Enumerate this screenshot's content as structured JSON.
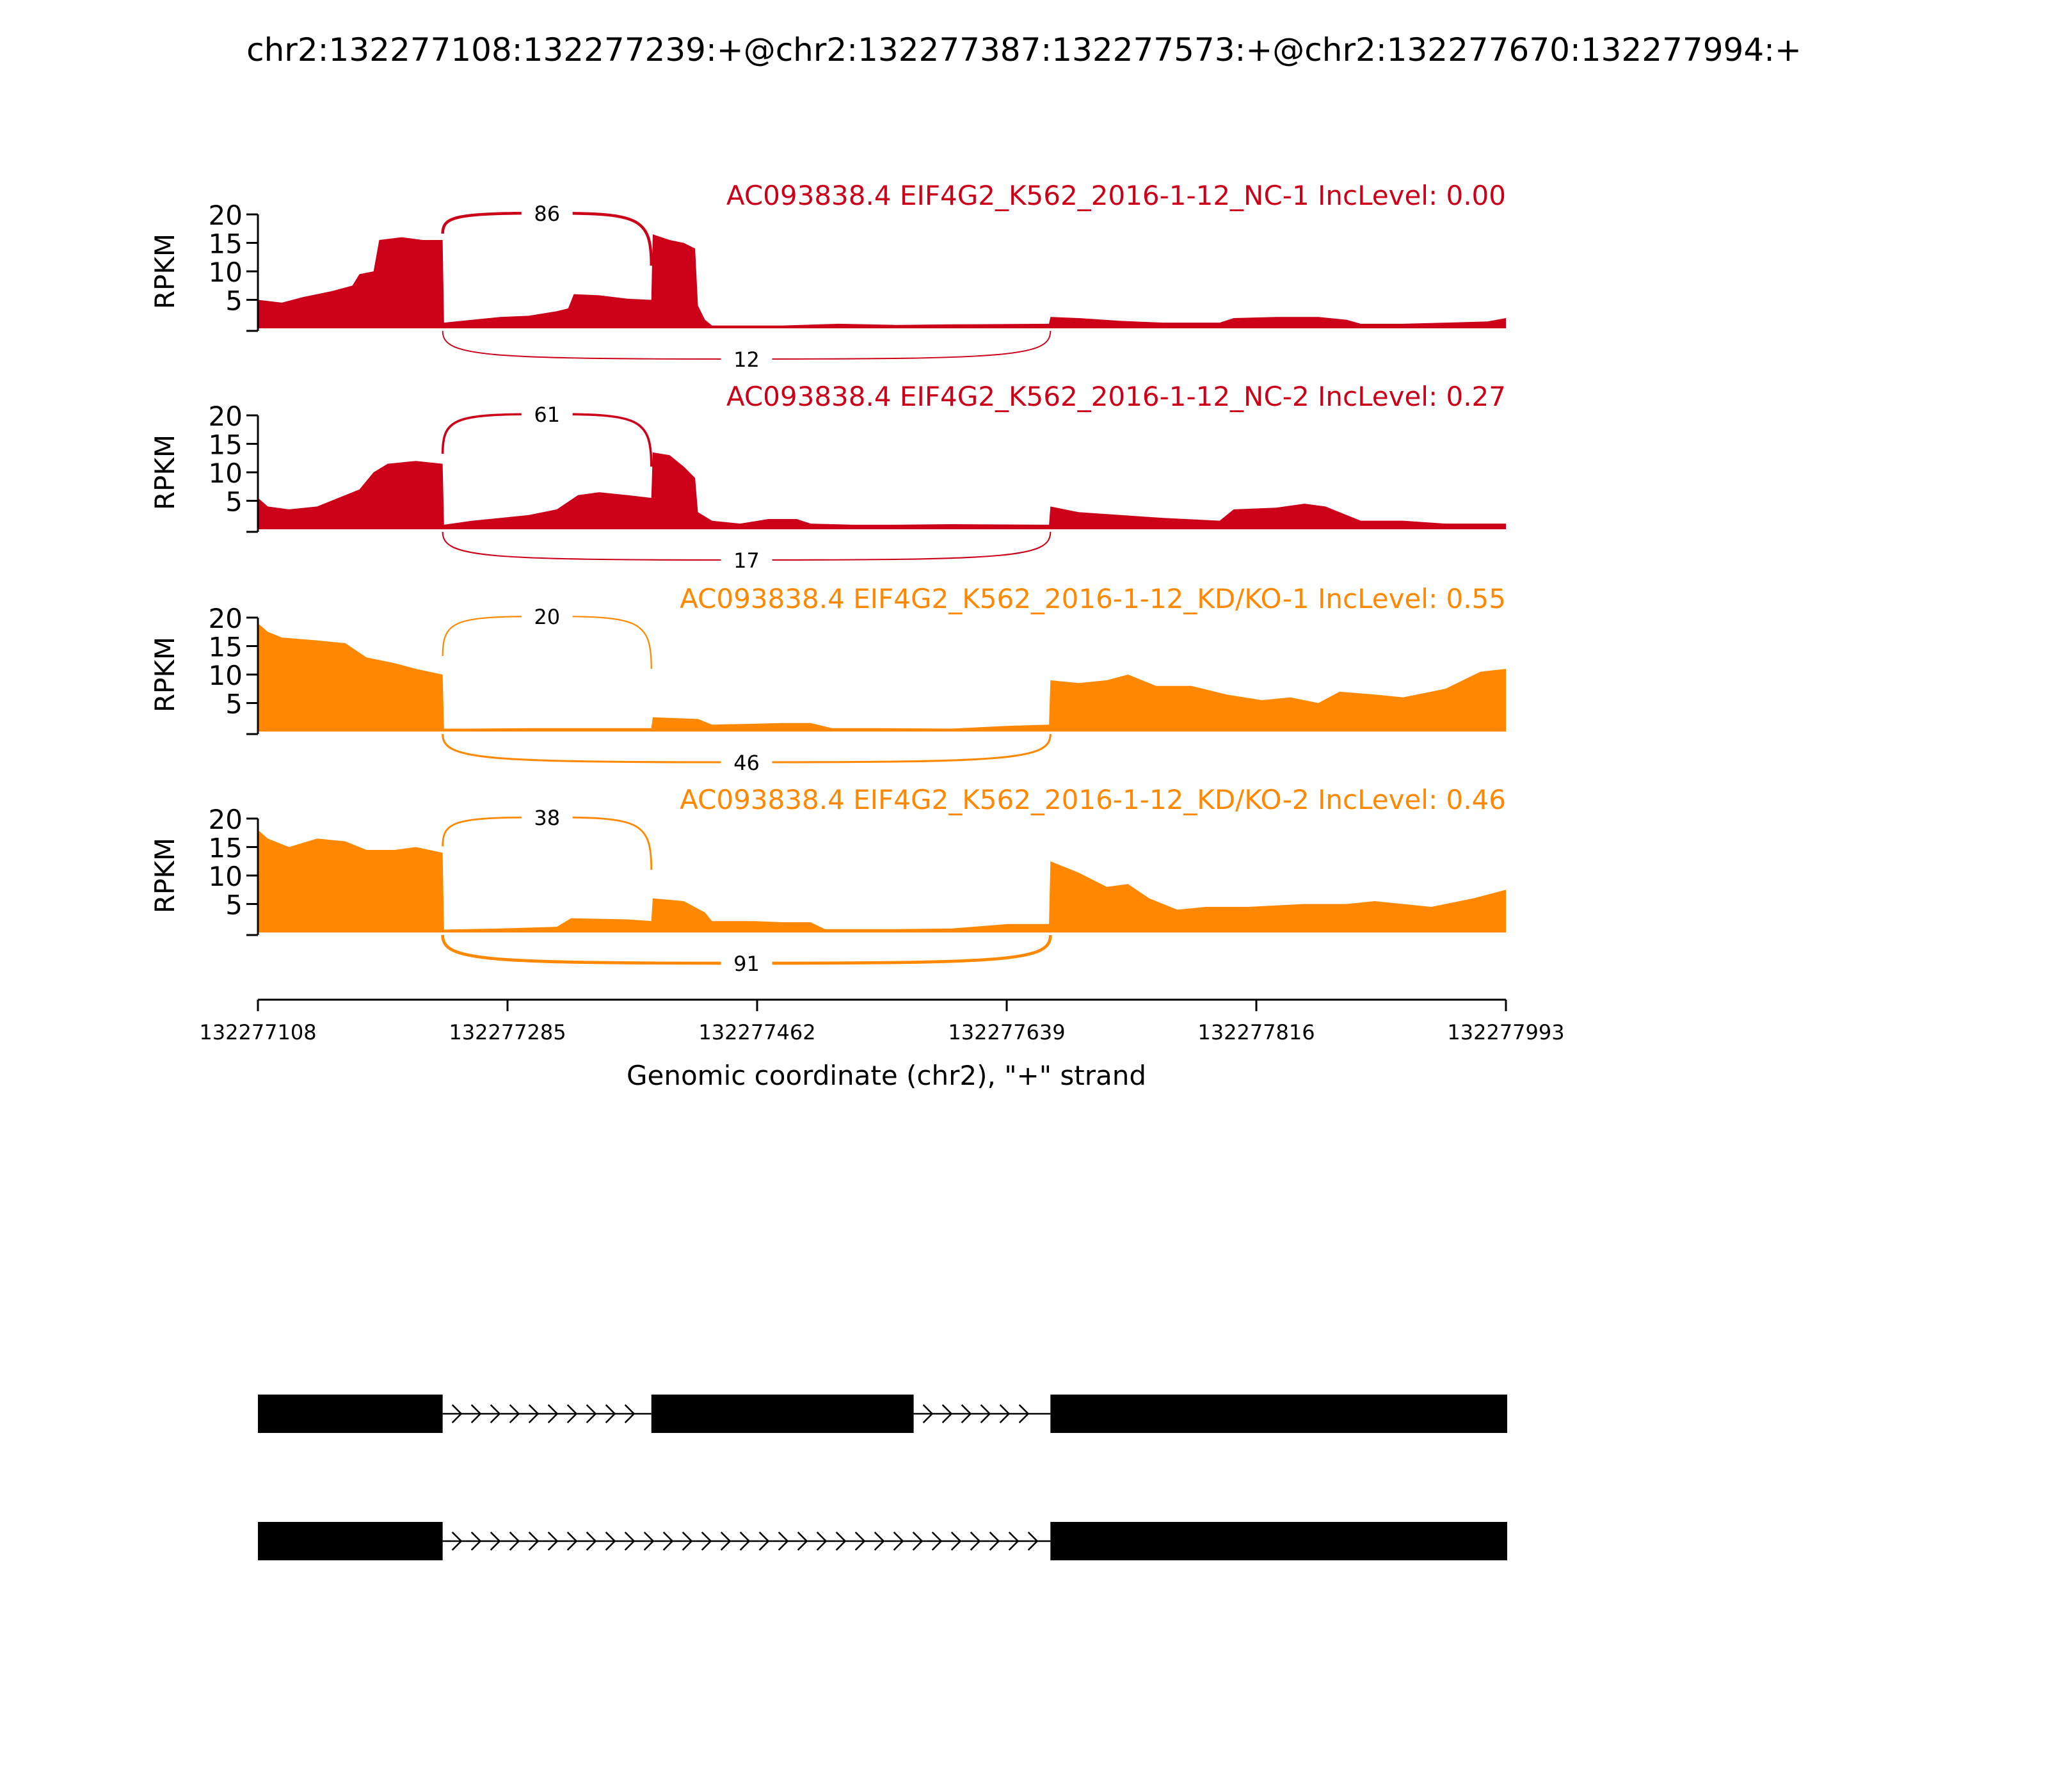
{
  "title": "chr2:132277108:132277239:+@chr2:132277387:132277573:+@chr2:132277670:132277994:+",
  "colors": {
    "nc": "#cc0018",
    "kd": "#ff8800",
    "axis": "#000000",
    "exon": "#000000"
  },
  "chart_data": {
    "type": "area",
    "subtype": "sashimi",
    "xlabel": "Genomic coordinate (chr2), \"+\" strand",
    "xlim": [
      132277108,
      132277993
    ],
    "xticks": [
      132277108,
      132277285,
      132277462,
      132277639,
      132277816,
      132277993
    ],
    "ylabel": "RPKM",
    "ylim": [
      0,
      20
    ],
    "yticks": [
      5,
      10,
      15,
      20
    ],
    "exons": [
      [
        132277108,
        132277239
      ],
      [
        132277387,
        132277573
      ],
      [
        132277670,
        132277994
      ]
    ],
    "tracks": [
      {
        "name": "AC093838.4 EIF4G2_K562_2016-1-12_NC-1 IncLevel: 0.00",
        "group": "nc",
        "junctions": [
          {
            "from": 132277239,
            "to": 132277387,
            "count": 86,
            "side": "above"
          },
          {
            "from": 132277239,
            "to": 132277670,
            "count": 12,
            "side": "below"
          }
        ],
        "coverage": [
          [
            132277108,
            5.0
          ],
          [
            132277125,
            4.5
          ],
          [
            132277140,
            5.5
          ],
          [
            132277160,
            6.5
          ],
          [
            132277175,
            7.5
          ],
          [
            132277180,
            9.5
          ],
          [
            132277190,
            10.0
          ],
          [
            132277194,
            15.5
          ],
          [
            132277210,
            16.0
          ],
          [
            132277225,
            15.5
          ],
          [
            132277239,
            15.5
          ],
          [
            132277240,
            1.0
          ],
          [
            132277260,
            1.5
          ],
          [
            132277280,
            2.0
          ],
          [
            132277300,
            2.2
          ],
          [
            132277320,
            3.0
          ],
          [
            132277328,
            3.5
          ],
          [
            132277332,
            6.0
          ],
          [
            132277350,
            5.8
          ],
          [
            132277370,
            5.2
          ],
          [
            132277387,
            5.0
          ],
          [
            132277388,
            16.5
          ],
          [
            132277400,
            15.5
          ],
          [
            132277410,
            15.0
          ],
          [
            132277418,
            14.0
          ],
          [
            132277420,
            4.0
          ],
          [
            132277425,
            1.5
          ],
          [
            132277430,
            0.5
          ],
          [
            132277480,
            0.5
          ],
          [
            132277520,
            0.8
          ],
          [
            132277560,
            0.6
          ],
          [
            132277600,
            0.7
          ],
          [
            132277669,
            0.8
          ],
          [
            132277670,
            2.0
          ],
          [
            132277690,
            1.8
          ],
          [
            132277720,
            1.3
          ],
          [
            132277750,
            1.0
          ],
          [
            132277790,
            1.0
          ],
          [
            132277800,
            1.8
          ],
          [
            132277830,
            2.0
          ],
          [
            132277860,
            2.0
          ],
          [
            132277880,
            1.5
          ],
          [
            132277890,
            0.8
          ],
          [
            132277920,
            0.8
          ],
          [
            132277950,
            1.0
          ],
          [
            132277980,
            1.2
          ],
          [
            132277993,
            1.8
          ]
        ]
      },
      {
        "name": "AC093838.4 EIF4G2_K562_2016-1-12_NC-2 IncLevel: 0.27",
        "group": "nc",
        "junctions": [
          {
            "from": 132277239,
            "to": 132277387,
            "count": 61,
            "side": "above"
          },
          {
            "from": 132277239,
            "to": 132277670,
            "count": 17,
            "side": "below"
          }
        ],
        "coverage": [
          [
            132277108,
            5.5
          ],
          [
            132277115,
            4.0
          ],
          [
            132277130,
            3.5
          ],
          [
            132277150,
            4.0
          ],
          [
            132277165,
            5.5
          ],
          [
            132277180,
            7.0
          ],
          [
            132277190,
            10.0
          ],
          [
            132277200,
            11.5
          ],
          [
            132277220,
            12.0
          ],
          [
            132277239,
            11.5
          ],
          [
            132277240,
            0.8
          ],
          [
            132277260,
            1.5
          ],
          [
            132277280,
            2.0
          ],
          [
            132277300,
            2.5
          ],
          [
            132277320,
            3.5
          ],
          [
            132277335,
            6.0
          ],
          [
            132277350,
            6.5
          ],
          [
            132277370,
            6.0
          ],
          [
            132277387,
            5.5
          ],
          [
            132277388,
            13.5
          ],
          [
            132277400,
            13.0
          ],
          [
            132277410,
            11.0
          ],
          [
            132277418,
            9.0
          ],
          [
            132277420,
            3.0
          ],
          [
            132277430,
            1.5
          ],
          [
            132277450,
            1.0
          ],
          [
            132277470,
            1.8
          ],
          [
            132277490,
            1.8
          ],
          [
            132277500,
            1.0
          ],
          [
            132277530,
            0.8
          ],
          [
            132277560,
            0.8
          ],
          [
            132277600,
            0.9
          ],
          [
            132277669,
            0.8
          ],
          [
            132277670,
            4.0
          ],
          [
            132277690,
            3.0
          ],
          [
            132277720,
            2.5
          ],
          [
            132277750,
            2.0
          ],
          [
            132277790,
            1.5
          ],
          [
            132277800,
            3.5
          ],
          [
            132277830,
            3.8
          ],
          [
            132277850,
            4.5
          ],
          [
            132277865,
            4.0
          ],
          [
            132277880,
            2.5
          ],
          [
            132277890,
            1.5
          ],
          [
            132277920,
            1.5
          ],
          [
            132277950,
            1.0
          ],
          [
            132277993,
            1.0
          ]
        ]
      },
      {
        "name": "AC093838.4 EIF4G2_K562_2016-1-12_KD/KO-1 IncLevel: 0.55",
        "group": "kd",
        "junctions": [
          {
            "from": 132277239,
            "to": 132277387,
            "count": 20,
            "side": "above"
          },
          {
            "from": 132277239,
            "to": 132277670,
            "count": 46,
            "side": "below"
          }
        ],
        "coverage": [
          [
            132277108,
            19.0
          ],
          [
            132277115,
            17.5
          ],
          [
            132277125,
            16.5
          ],
          [
            132277150,
            16.0
          ],
          [
            132277170,
            15.5
          ],
          [
            132277185,
            13.0
          ],
          [
            132277205,
            12.0
          ],
          [
            132277220,
            11.0
          ],
          [
            132277239,
            10.0
          ],
          [
            132277240,
            0.5
          ],
          [
            132277260,
            0.5
          ],
          [
            132277300,
            0.6
          ],
          [
            132277387,
            0.6
          ],
          [
            132277388,
            2.5
          ],
          [
            132277420,
            2.2
          ],
          [
            132277430,
            1.2
          ],
          [
            132277480,
            1.5
          ],
          [
            132277500,
            1.5
          ],
          [
            132277515,
            0.6
          ],
          [
            132277550,
            0.6
          ],
          [
            132277600,
            0.5
          ],
          [
            132277640,
            1.0
          ],
          [
            132277669,
            1.2
          ],
          [
            132277670,
            9.0
          ],
          [
            132277690,
            8.5
          ],
          [
            132277710,
            9.0
          ],
          [
            132277725,
            10.0
          ],
          [
            132277745,
            8.0
          ],
          [
            132277770,
            8.0
          ],
          [
            132277795,
            6.5
          ],
          [
            132277820,
            5.5
          ],
          [
            132277840,
            6.0
          ],
          [
            132277860,
            5.0
          ],
          [
            132277875,
            7.0
          ],
          [
            132277900,
            6.5
          ],
          [
            132277920,
            6.0
          ],
          [
            132277950,
            7.5
          ],
          [
            132277975,
            10.5
          ],
          [
            132277993,
            11.0
          ]
        ]
      },
      {
        "name": "AC093838.4 EIF4G2_K562_2016-1-12_KD/KO-2 IncLevel: 0.46",
        "group": "kd",
        "junctions": [
          {
            "from": 132277239,
            "to": 132277387,
            "count": 38,
            "side": "above"
          },
          {
            "from": 132277239,
            "to": 132277670,
            "count": 91,
            "side": "below"
          }
        ],
        "coverage": [
          [
            132277108,
            18.0
          ],
          [
            132277115,
            16.5
          ],
          [
            132277130,
            15.0
          ],
          [
            132277150,
            16.5
          ],
          [
            132277170,
            16.0
          ],
          [
            132277185,
            14.5
          ],
          [
            132277205,
            14.5
          ],
          [
            132277220,
            15.0
          ],
          [
            132277239,
            14.0
          ],
          [
            132277240,
            0.5
          ],
          [
            132277280,
            0.7
          ],
          [
            132277320,
            1.0
          ],
          [
            132277330,
            2.5
          ],
          [
            132277370,
            2.3
          ],
          [
            132277387,
            2.0
          ],
          [
            132277388,
            6.0
          ],
          [
            132277410,
            5.5
          ],
          [
            132277425,
            3.5
          ],
          [
            132277430,
            2.0
          ],
          [
            132277460,
            2.0
          ],
          [
            132277480,
            1.8
          ],
          [
            132277500,
            1.8
          ],
          [
            132277510,
            0.6
          ],
          [
            132277560,
            0.6
          ],
          [
            132277600,
            0.7
          ],
          [
            132277640,
            1.5
          ],
          [
            132277669,
            1.5
          ],
          [
            132277670,
            12.5
          ],
          [
            132277690,
            10.5
          ],
          [
            132277710,
            8.0
          ],
          [
            132277725,
            8.5
          ],
          [
            132277740,
            6.0
          ],
          [
            132277760,
            4.0
          ],
          [
            132277780,
            4.5
          ],
          [
            132277810,
            4.5
          ],
          [
            132277850,
            5.0
          ],
          [
            132277880,
            5.0
          ],
          [
            132277900,
            5.5
          ],
          [
            132277940,
            4.5
          ],
          [
            132277970,
            6.0
          ],
          [
            132277993,
            7.5
          ]
        ]
      }
    ],
    "isoforms": [
      {
        "exons": [
          [
            132277108,
            132277239
          ],
          [
            132277387,
            132277573
          ],
          [
            132277670,
            132277994
          ]
        ]
      },
      {
        "exons": [
          [
            132277108,
            132277239
          ],
          [
            132277670,
            132277994
          ]
        ]
      }
    ]
  }
}
